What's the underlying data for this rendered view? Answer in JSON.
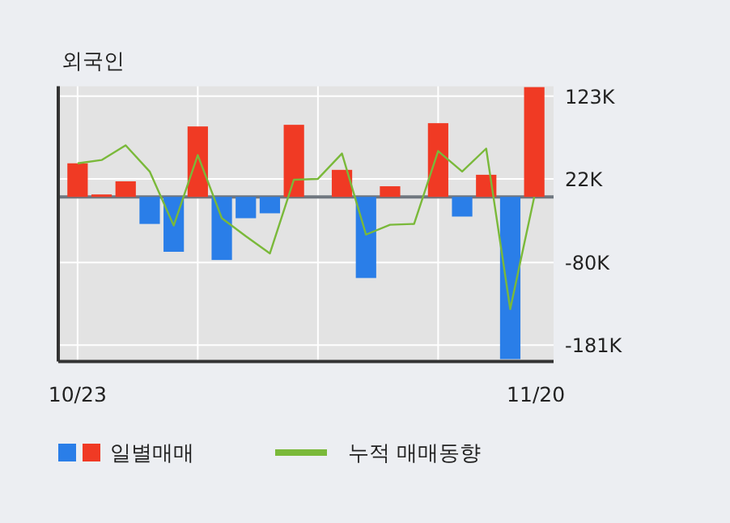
{
  "chart_data": {
    "type": "bar",
    "title": "외국인",
    "categories": [
      "10/23",
      null,
      null,
      null,
      null,
      null,
      null,
      null,
      null,
      null,
      null,
      null,
      null,
      null,
      null,
      null,
      null,
      null,
      null,
      "11/20"
    ],
    "series": [
      {
        "name": "일별매매",
        "colors": [
          "#f03a24",
          "#f03a24",
          "#f03a24",
          "#2a7ee8",
          "#2a7ee8",
          "#f03a24",
          "#2a7ee8",
          "#2a7ee8",
          "#2a7ee8",
          "#f03a24",
          "#f03a24",
          "#f03a24",
          "#2a7ee8",
          "#f03a24",
          "#f03a24",
          "#f03a24",
          "#2a7ee8",
          "#f03a24",
          "#2a7ee8",
          "#f03a24"
        ],
        "values": [
          41000,
          3000,
          19000,
          -33000,
          -67000,
          86000,
          -77000,
          -26000,
          -20000,
          88000,
          0,
          33000,
          -99000,
          13000,
          0,
          90000,
          -24000,
          27000,
          -198000,
          134000
        ]
      },
      {
        "name": "누적 매매동향",
        "type": "line",
        "color": "#7ab93a",
        "values": [
          41000,
          45000,
          63000,
          31000,
          -35000,
          51000,
          -26000,
          -48000,
          -69000,
          21000,
          22000,
          53000,
          -46000,
          -34000,
          -33000,
          56000,
          31000,
          59000,
          -137000,
          0
        ]
      }
    ],
    "ylim": [
      -201000,
      135000
    ],
    "yticks": [
      {
        "value": 123000,
        "label": "123K"
      },
      {
        "value": 22000,
        "label": "22K"
      },
      {
        "value": -80000,
        "label": "-80K"
      },
      {
        "value": -181000,
        "label": "-181K"
      }
    ],
    "ref_lines": [
      {
        "axis": "y",
        "value": 0,
        "color": "#6f7780"
      }
    ],
    "grid": true,
    "legend": "bottom"
  }
}
